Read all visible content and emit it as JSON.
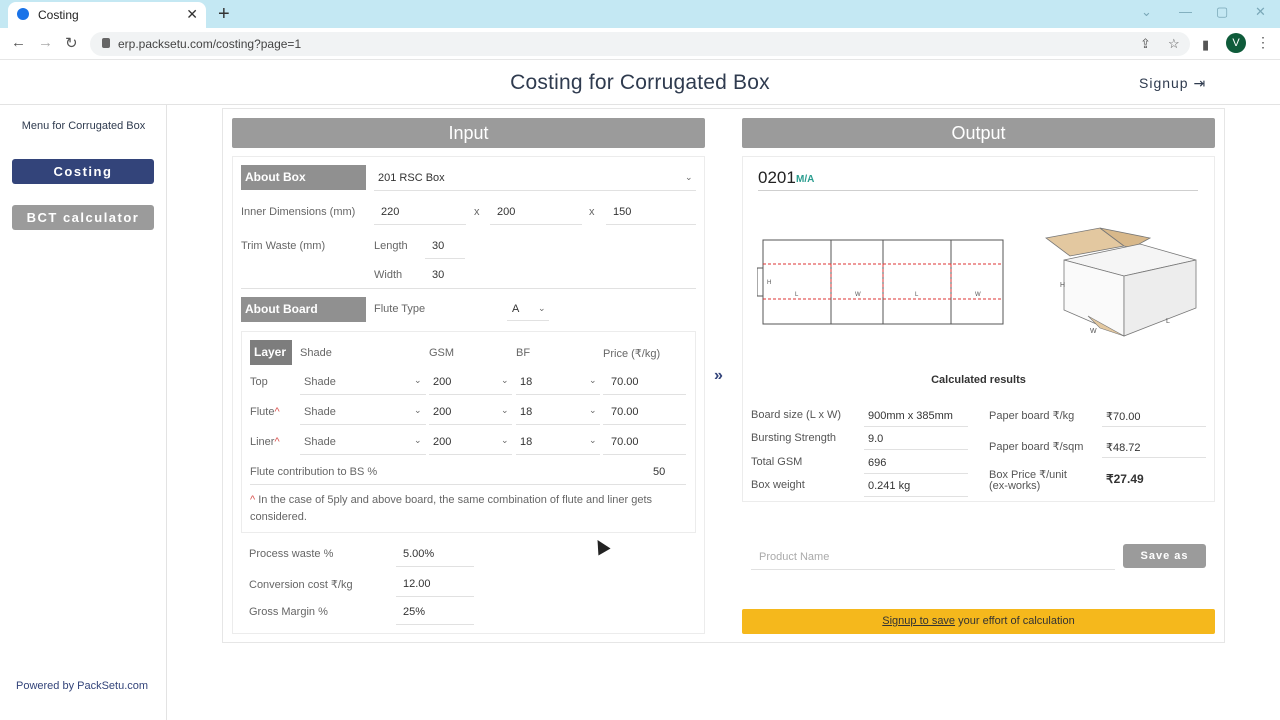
{
  "browser": {
    "tab_title": "Costing",
    "url": "erp.packsetu.com/costing?page=1",
    "avatar_letter": "V"
  },
  "header": {
    "title": "Costing for Corrugated Box",
    "signup": "Signup"
  },
  "sidebar": {
    "menu_title": "Menu for Corrugated Box",
    "items": [
      {
        "label": "Costing"
      },
      {
        "label": "BCT calculator"
      }
    ],
    "powered_by": "Powered by PackSetu.com"
  },
  "input": {
    "title": "Input",
    "about_box_label": "About Box",
    "box_type": "201 RSC Box",
    "inner_dim_label": "Inner Dimensions (mm)",
    "dims": {
      "l": "220",
      "w": "200",
      "h": "150",
      "sep": "x"
    },
    "trim_label": "Trim Waste (mm)",
    "trim_length_label": "Length",
    "trim_length": "30",
    "trim_width_label": "Width",
    "trim_width": "30",
    "about_board_label": "About Board",
    "flute_type_label": "Flute Type",
    "flute_type": "A",
    "layer_headers": {
      "layer": "Layer",
      "shade": "Shade",
      "gsm": "GSM",
      "bf": "BF",
      "price": "Price (₹/kg)"
    },
    "layers": [
      {
        "name": "Top",
        "mark": "",
        "shade": "Shade",
        "gsm": "200",
        "bf": "18",
        "price": "70.00"
      },
      {
        "name": "Flute",
        "mark": "^",
        "shade": "Shade",
        "gsm": "200",
        "bf": "18",
        "price": "70.00"
      },
      {
        "name": "Liner",
        "mark": "^",
        "shade": "Shade",
        "gsm": "200",
        "bf": "18",
        "price": "70.00"
      }
    ],
    "flute_contrib_label": "Flute contribution to BS %",
    "flute_contrib": "50",
    "note_mark": "^",
    "note_text": "In the case of 5ply and above board, the same combination of flute and liner gets considered.",
    "process_waste_label": "Process waste %",
    "process_waste": "5.00%",
    "conversion_label": "Conversion cost ₹/kg",
    "conversion": "12.00",
    "margin_label": "Gross Margin %",
    "margin": "25%"
  },
  "output": {
    "title": "Output",
    "code": "0201",
    "code_sub": "M/A",
    "results_title": "Calculated results",
    "results_left": [
      {
        "label": "Board size (L x W)",
        "value": "900mm x 385mm"
      },
      {
        "label": "Bursting Strength",
        "value": "9.0"
      },
      {
        "label": "Total GSM",
        "value": "696"
      },
      {
        "label": "Box weight",
        "value": "0.241 kg"
      }
    ],
    "results_right": [
      {
        "label": "Paper board ₹/kg",
        "value": "₹70.00"
      },
      {
        "label": "Paper board ₹/sqm",
        "value": "₹48.72"
      },
      {
        "label_line1": "Box Price ₹/unit",
        "label_line2": "(ex-works)",
        "value": "₹27.49"
      }
    ],
    "diagram_labels": {
      "l": "L",
      "w": "W",
      "h": "H"
    },
    "product_placeholder": "Product Name",
    "save_label": "Save as",
    "banner_link": "Signup to save",
    "banner_rest": " your effort of calculation"
  },
  "colors": {
    "accent": "#33447a",
    "header_gray": "#9b9b9b",
    "banner": "#f5b81c"
  }
}
